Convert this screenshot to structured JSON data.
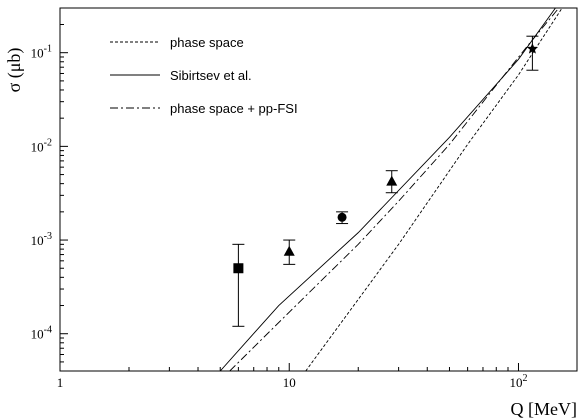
{
  "chart_data": {
    "type": "line",
    "xlabel": "Q [MeV]",
    "ylabel": "σ (μb)",
    "xscale": "log",
    "yscale": "log",
    "xlim": [
      1,
      180
    ],
    "ylim": [
      4e-05,
      0.3
    ],
    "grid": false,
    "legend_position": "top-left",
    "x_ticks": [
      {
        "value": 1,
        "label": "1"
      },
      {
        "value": 10,
        "label": "10"
      },
      {
        "value": 100,
        "label": "10",
        "exp": "2"
      }
    ],
    "y_ticks": [
      {
        "value": 0.0001,
        "label": "10",
        "exp": "-4"
      },
      {
        "value": 0.001,
        "label": "10",
        "exp": "-3"
      },
      {
        "value": 0.01,
        "label": "10",
        "exp": "-2"
      },
      {
        "value": 0.1,
        "label": "10",
        "exp": "-1"
      }
    ],
    "series": [
      {
        "name": "phase space",
        "dash": "dashed",
        "x": [
          11.8,
          30,
          60,
          100,
          155
        ],
        "y": [
          4e-05,
          0.0009,
          0.0105,
          0.058,
          0.3
        ]
      },
      {
        "name": "Sibirtsev et al.",
        "dash": "solid",
        "x": [
          5,
          9,
          20,
          50,
          100,
          145
        ],
        "y": [
          4e-05,
          0.0002,
          0.0012,
          0.0125,
          0.085,
          0.3
        ]
      },
      {
        "name": "phase space + pp-FSI",
        "dash": "dashdot",
        "x": [
          5.5,
          10,
          20,
          30,
          50,
          80,
          110,
          150
        ],
        "y": [
          4e-05,
          0.00017,
          0.0009,
          0.0026,
          0.0105,
          0.045,
          0.12,
          0.3
        ]
      }
    ],
    "data_points": [
      {
        "marker": "square",
        "x": 6,
        "y": 0.0005,
        "err_low": 0.00012,
        "err_high": 0.0009
      },
      {
        "marker": "triangle",
        "x": 10,
        "y": 0.00075,
        "err_low": 0.00055,
        "err_high": 0.001
      },
      {
        "marker": "circle",
        "x": 17,
        "y": 0.00175,
        "err_low": 0.0015,
        "err_high": 0.002
      },
      {
        "marker": "triangle",
        "x": 28,
        "y": 0.0042,
        "err_low": 0.0032,
        "err_high": 0.0055
      },
      {
        "marker": "star",
        "x": 115,
        "y": 0.11,
        "err_low": 0.065,
        "err_high": 0.15
      }
    ]
  }
}
